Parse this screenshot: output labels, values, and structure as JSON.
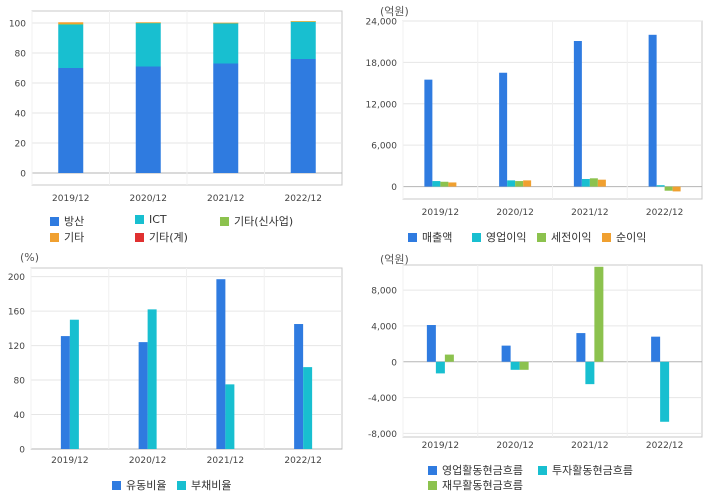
{
  "chart_data": [
    {
      "id": "business-mix",
      "type": "bar",
      "stacked": true,
      "unit": "",
      "categories": [
        "2019/12",
        "2020/12",
        "2021/12",
        "2022/12"
      ],
      "ylim": [
        -8,
        108
      ],
      "ticks": [
        0,
        20,
        40,
        60,
        80,
        100
      ],
      "grid": true,
      "series": [
        {
          "name": "방산",
          "color": "#2f7be0",
          "values": [
            70,
            71,
            73,
            76
          ]
        },
        {
          "name": "ICT",
          "color": "#18bfd0",
          "values": [
            29,
            29,
            27,
            25
          ]
        },
        {
          "name": "기타(신사업)",
          "color": "#8cc24e",
          "values": [
            0.3,
            0.2,
            0.1,
            0.1
          ]
        },
        {
          "name": "기타",
          "color": "#f0a030",
          "values": [
            1.2,
            0.3,
            0.1,
            0.1
          ]
        },
        {
          "name": "기타(계)",
          "color": "#e03030",
          "values": [
            0,
            0,
            0,
            0
          ]
        }
      ]
    },
    {
      "id": "income",
      "type": "bar",
      "unit": "(억원)",
      "categories": [
        "2019/12",
        "2020/12",
        "2021/12",
        "2022/12"
      ],
      "ylim": [
        -1800,
        24000
      ],
      "ticks": [
        0,
        6000,
        12000,
        18000,
        24000
      ],
      "grid": true,
      "series": [
        {
          "name": "매출액",
          "color": "#2f7be0",
          "values": [
            15500,
            16500,
            21100,
            22000
          ]
        },
        {
          "name": "영업이익",
          "color": "#18bfd0",
          "values": [
            800,
            900,
            1100,
            200
          ]
        },
        {
          "name": "세전이익",
          "color": "#8cc24e",
          "values": [
            700,
            800,
            1200,
            -600
          ]
        },
        {
          "name": "순이익",
          "color": "#f0a030",
          "values": [
            600,
            900,
            1000,
            -700
          ]
        }
      ]
    },
    {
      "id": "ratios",
      "type": "bar",
      "unit": "(%)",
      "categories": [
        "2019/12",
        "2020/12",
        "2021/12",
        "2022/12"
      ],
      "ylim": [
        0,
        210
      ],
      "ticks": [
        0,
        40,
        80,
        120,
        160,
        200
      ],
      "grid": true,
      "series": [
        {
          "name": "유동비율",
          "color": "#2f7be0",
          "values": [
            131,
            124,
            197,
            145
          ]
        },
        {
          "name": "부채비율",
          "color": "#18bfd0",
          "values": [
            150,
            162,
            75,
            95
          ]
        }
      ]
    },
    {
      "id": "cashflow",
      "type": "bar",
      "unit": "(억원)",
      "categories": [
        "2019/12",
        "2020/12",
        "2021/12",
        "2022/12"
      ],
      "ylim": [
        -8400,
        10800
      ],
      "ticks": [
        -8000,
        -4000,
        0,
        4000,
        8000
      ],
      "grid": true,
      "series": [
        {
          "name": "영업활동현금흐름",
          "color": "#2f7be0",
          "values": [
            4100,
            1800,
            3200,
            2800
          ]
        },
        {
          "name": "투자활동현금흐름",
          "color": "#18bfd0",
          "values": [
            -1300,
            -900,
            -2500,
            -6700
          ]
        },
        {
          "name": "재무활동현금흐름",
          "color": "#8cc24e",
          "values": [
            800,
            -900,
            10600,
            0
          ]
        }
      ]
    }
  ]
}
